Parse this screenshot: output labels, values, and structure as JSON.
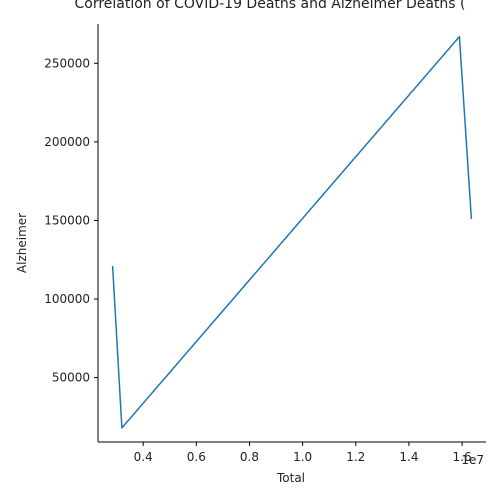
{
  "chart_data": {
    "type": "line",
    "title": "Correlation of COVID-19 Deaths and Alzheimer Deaths (",
    "xlabel": "Total",
    "ylabel": "Alzheimer",
    "x_offset_label": "1e7",
    "xlim": [
      2300000,
      16900000
    ],
    "ylim": [
      9000,
      275000
    ],
    "x_ticks": [
      4000000,
      6000000,
      8000000,
      10000000,
      12000000,
      14000000,
      16000000
    ],
    "x_tick_labels": [
      "0.4",
      "0.6",
      "0.8",
      "1.0",
      "1.2",
      "1.4",
      "1.6"
    ],
    "y_ticks": [
      50000,
      100000,
      150000,
      200000,
      250000
    ],
    "y_tick_labels": [
      "50000",
      "100000",
      "150000",
      "200000",
      "250000"
    ],
    "grid": false,
    "series": [
      {
        "color": "#1f77b4",
        "x": [
          2850000,
          3200000,
          15900000,
          16350000
        ],
        "y": [
          121000,
          18000,
          267000,
          151000
        ]
      }
    ]
  }
}
